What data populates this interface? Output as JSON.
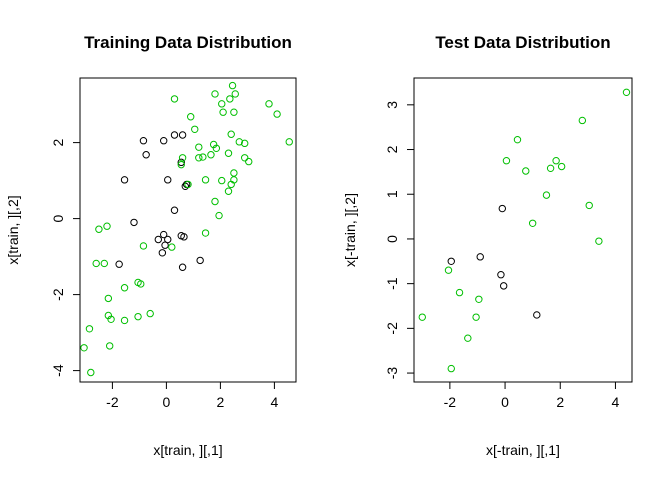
{
  "chart_data": [
    {
      "type": "scatter",
      "title": "Training Data Distribution",
      "xlabel": "x[train, ][,1]",
      "ylabel": "x[train, ][,2]",
      "xlim": [
        -3.2,
        4.8
      ],
      "ylim": [
        -4.3,
        3.7
      ],
      "xticks": [
        -2,
        0,
        2,
        4
      ],
      "yticks": [
        -4,
        -2,
        0,
        2
      ],
      "grid": false,
      "marker": "open-circle",
      "series": [
        {
          "color": "#000000",
          "points": [
            [
              -0.85,
              2.05
            ],
            [
              -0.1,
              2.05
            ],
            [
              0.3,
              2.2
            ],
            [
              0.6,
              2.2
            ],
            [
              -0.75,
              1.68
            ],
            [
              -1.55,
              1.02
            ],
            [
              0.05,
              1.02
            ],
            [
              0.55,
              1.48
            ],
            [
              0.75,
              0.9
            ],
            [
              0.7,
              0.85
            ],
            [
              0.3,
              0.22
            ],
            [
              -1.2,
              -0.1
            ],
            [
              -0.3,
              -0.55
            ],
            [
              -0.1,
              -0.42
            ],
            [
              0.05,
              -0.55
            ],
            [
              -0.05,
              -0.7
            ],
            [
              -0.15,
              -0.9
            ],
            [
              0.55,
              -0.45
            ],
            [
              0.65,
              -0.48
            ],
            [
              0.6,
              -1.28
            ],
            [
              1.25,
              -1.1
            ],
            [
              -1.75,
              -1.2
            ]
          ]
        },
        {
          "color": "#00bf00",
          "points": [
            [
              2.45,
              3.5
            ],
            [
              2.55,
              3.28
            ],
            [
              1.8,
              3.28
            ],
            [
              0.3,
              3.15
            ],
            [
              2.35,
              3.15
            ],
            [
              3.8,
              3.02
            ],
            [
              2.05,
              3.02
            ],
            [
              4.1,
              2.75
            ],
            [
              0.9,
              2.68
            ],
            [
              2.1,
              2.8
            ],
            [
              2.5,
              2.8
            ],
            [
              1.05,
              2.35
            ],
            [
              2.4,
              2.22
            ],
            [
              2.7,
              2.02
            ],
            [
              2.9,
              1.98
            ],
            [
              4.55,
              2.02
            ],
            [
              1.85,
              1.85
            ],
            [
              1.75,
              1.95
            ],
            [
              1.2,
              1.88
            ],
            [
              1.65,
              1.68
            ],
            [
              2.3,
              1.72
            ],
            [
              1.2,
              1.6
            ],
            [
              1.35,
              1.62
            ],
            [
              2.9,
              1.6
            ],
            [
              3.05,
              1.5
            ],
            [
              0.6,
              1.6
            ],
            [
              0.55,
              1.42
            ],
            [
              1.45,
              1.02
            ],
            [
              2.05,
              1.0
            ],
            [
              2.5,
              1.2
            ],
            [
              2.5,
              1.02
            ],
            [
              2.3,
              0.72
            ],
            [
              2.4,
              0.9
            ],
            [
              1.8,
              0.45
            ],
            [
              1.95,
              0.08
            ],
            [
              0.8,
              0.9
            ],
            [
              1.45,
              -0.38
            ],
            [
              -0.85,
              -0.72
            ],
            [
              0.2,
              -0.75
            ],
            [
              -2.5,
              -0.28
            ],
            [
              -2.2,
              -0.2
            ],
            [
              -2.6,
              -1.18
            ],
            [
              -2.3,
              -1.18
            ],
            [
              -1.05,
              -1.68
            ],
            [
              -1.55,
              -1.82
            ],
            [
              -0.95,
              -1.72
            ],
            [
              -2.15,
              -2.1
            ],
            [
              -0.6,
              -2.5
            ],
            [
              -2.15,
              -2.55
            ],
            [
              -2.05,
              -2.65
            ],
            [
              -1.55,
              -2.68
            ],
            [
              -1.05,
              -2.58
            ],
            [
              -2.85,
              -2.9
            ],
            [
              -2.1,
              -3.35
            ],
            [
              -3.05,
              -3.4
            ],
            [
              -2.8,
              -4.05
            ]
          ]
        }
      ]
    },
    {
      "type": "scatter",
      "title": "Test Data Distribution",
      "xlabel": "x[-train, ][,1]",
      "ylabel": "x[-train, ][,2]",
      "xlim": [
        -3.3,
        4.6
      ],
      "ylim": [
        -3.2,
        3.6
      ],
      "xticks": [
        -2,
        0,
        2,
        4
      ],
      "yticks": [
        -3,
        -2,
        -1,
        0,
        1,
        2,
        3
      ],
      "grid": false,
      "marker": "open-circle",
      "series": [
        {
          "color": "#000000",
          "points": [
            [
              -0.1,
              0.68
            ],
            [
              -0.9,
              -0.4
            ],
            [
              -0.15,
              -0.8
            ],
            [
              -0.05,
              -1.05
            ],
            [
              -1.95,
              -0.5
            ],
            [
              1.15,
              -1.7
            ]
          ]
        },
        {
          "color": "#00bf00",
          "points": [
            [
              4.4,
              3.28
            ],
            [
              2.8,
              2.65
            ],
            [
              0.45,
              2.22
            ],
            [
              0.05,
              1.75
            ],
            [
              1.85,
              1.75
            ],
            [
              1.65,
              1.58
            ],
            [
              2.05,
              1.62
            ],
            [
              0.75,
              1.52
            ],
            [
              1.5,
              0.98
            ],
            [
              3.05,
              0.75
            ],
            [
              1.0,
              0.35
            ],
            [
              3.4,
              -0.05
            ],
            [
              -2.05,
              -0.7
            ],
            [
              -1.65,
              -1.2
            ],
            [
              -0.95,
              -1.35
            ],
            [
              -1.05,
              -1.75
            ],
            [
              -3.0,
              -1.75
            ],
            [
              -1.35,
              -2.22
            ],
            [
              -1.95,
              -2.9
            ]
          ]
        }
      ]
    }
  ]
}
